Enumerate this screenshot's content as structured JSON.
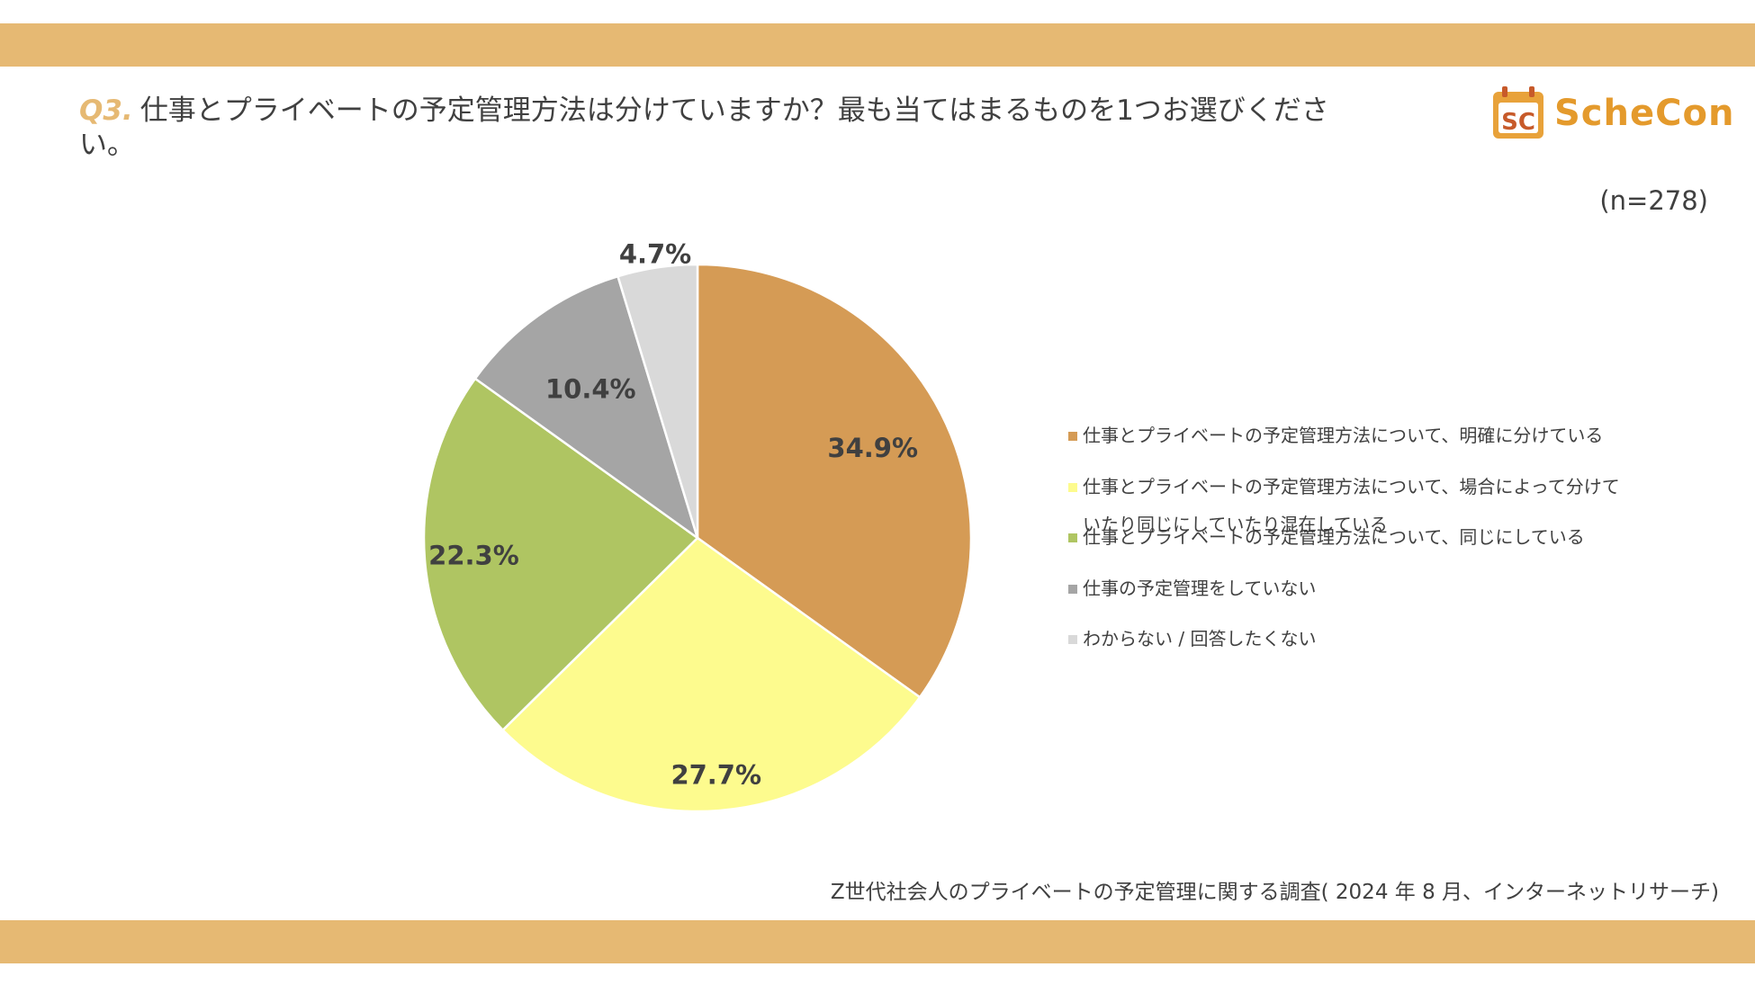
{
  "header": {
    "question_number": "Q3.",
    "question_text": "仕事とプライベートの予定管理方法は分けていますか？最も当てはまるものを1つお選びください。"
  },
  "logo": {
    "mark_text": "SC",
    "brand_name": "ScheCon",
    "brand_color": "#e49a2c"
  },
  "sample_size": "(n=278)",
  "chart_data": {
    "type": "pie",
    "categories": [
      "仕事とプライベートの予定管理方法について、明確に分けている",
      "仕事とプライベートの予定管理方法について、場合によって分けていたり同じにしていたり混在している",
      "仕事とプライベートの予定管理方法について、同じにしている",
      "仕事の予定管理をしていない",
      "わからない / 回答したくない"
    ],
    "values": [
      34.9,
      27.7,
      22.3,
      10.4,
      4.7
    ],
    "labels": [
      "34.9%",
      "27.7%",
      "22.3%",
      "10.4%",
      "4.7%"
    ],
    "colors": [
      "#d59b55",
      "#fdfb8e",
      "#afc562",
      "#a5a5a5",
      "#d9d9d9"
    ],
    "start_angle": "12 o'clock",
    "direction": "clockwise",
    "legend_position": "right"
  },
  "footer": {
    "source": "Z世代社会人のプライベートの予定管理に関する調査( 2024 年 8 月、インターネットリサーチ)"
  }
}
